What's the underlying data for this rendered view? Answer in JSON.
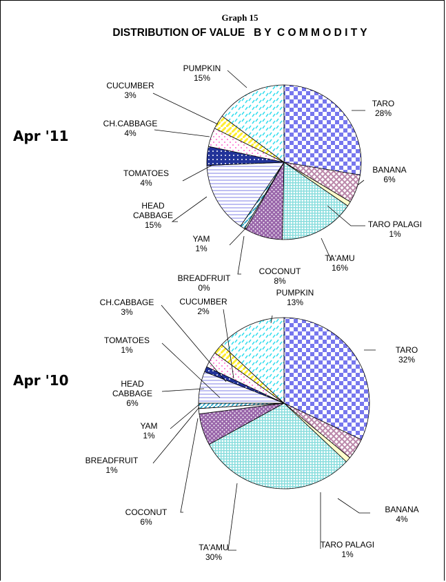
{
  "header": {
    "graph_number": "Graph 15",
    "title": "DISTRIBUTION OF VALUE   B Y  C O M M O D I T Y"
  },
  "colors": {
    "taro": "#7777ee",
    "banana": "#bb88aa",
    "taro_palagi": "#ffffcc",
    "taamu": "#88dddd",
    "coconut": "#9966aa",
    "breadfruit": "#ffffff",
    "yam": "#33aacc",
    "head_cabbage": "#aaaaee",
    "tomatoes": "#223399",
    "ch_cabbage": "#ff66cc",
    "cucumber": "#ffee33",
    "pumpkin": "#33ddee"
  },
  "chart_data": [
    {
      "type": "pie",
      "label": "Apr '11",
      "slices": [
        {
          "name": "TARO",
          "value": 28,
          "label": "28%",
          "key": "taro"
        },
        {
          "name": "BANANA",
          "value": 6,
          "label": "6%",
          "key": "banana"
        },
        {
          "name": "TARO PALAGI",
          "value": 1,
          "label": "1%",
          "key": "taro_palagi"
        },
        {
          "name": "TA'AMU",
          "value": 16,
          "label": "16%",
          "key": "taamu"
        },
        {
          "name": "COCONUT",
          "value": 8,
          "label": "8%",
          "key": "coconut"
        },
        {
          "name": "BREADFRUIT",
          "value": 0.3,
          "label": "0%",
          "key": "breadfruit"
        },
        {
          "name": "YAM",
          "value": 1,
          "label": "1%",
          "key": "yam"
        },
        {
          "name": "HEAD CABBAGE",
          "value": 15,
          "label": "15%",
          "key": "head_cabbage"
        },
        {
          "name": "TOMATOES",
          "value": 4,
          "label": "4%",
          "key": "tomatoes"
        },
        {
          "name": "CH.CABBAGE",
          "value": 4,
          "label": "4%",
          "key": "ch_cabbage"
        },
        {
          "name": "CUCUMBER",
          "value": 3,
          "label": "3%",
          "key": "cucumber"
        },
        {
          "name": "PUMPKIN",
          "value": 15,
          "label": "15%",
          "key": "pumpkin"
        }
      ]
    },
    {
      "type": "pie",
      "label": "Apr '10",
      "slices": [
        {
          "name": "TARO",
          "value": 32,
          "label": "32%",
          "key": "taro"
        },
        {
          "name": "BANANA",
          "value": 4,
          "label": "4%",
          "key": "banana"
        },
        {
          "name": "TARO PALAGI",
          "value": 1,
          "label": "1%",
          "key": "taro_palagi"
        },
        {
          "name": "TA'AMU",
          "value": 30,
          "label": "30%",
          "key": "taamu"
        },
        {
          "name": "COCONUT",
          "value": 6,
          "label": "6%",
          "key": "coconut"
        },
        {
          "name": "BREADFRUIT",
          "value": 1,
          "label": "1%",
          "key": "breadfruit"
        },
        {
          "name": "YAM",
          "value": 1,
          "label": "1%",
          "key": "yam"
        },
        {
          "name": "HEAD CABBAGE",
          "value": 6,
          "label": "6%",
          "key": "head_cabbage"
        },
        {
          "name": "TOMATOES",
          "value": 1,
          "label": "1%",
          "key": "tomatoes"
        },
        {
          "name": "CH.CABBAGE",
          "value": 3,
          "label": "3%",
          "key": "ch_cabbage"
        },
        {
          "name": "CUCUMBER",
          "value": 2,
          "label": "2%",
          "key": "cucumber"
        },
        {
          "name": "PUMPKIN",
          "value": 13,
          "label": "13%",
          "key": "pumpkin"
        }
      ]
    }
  ]
}
